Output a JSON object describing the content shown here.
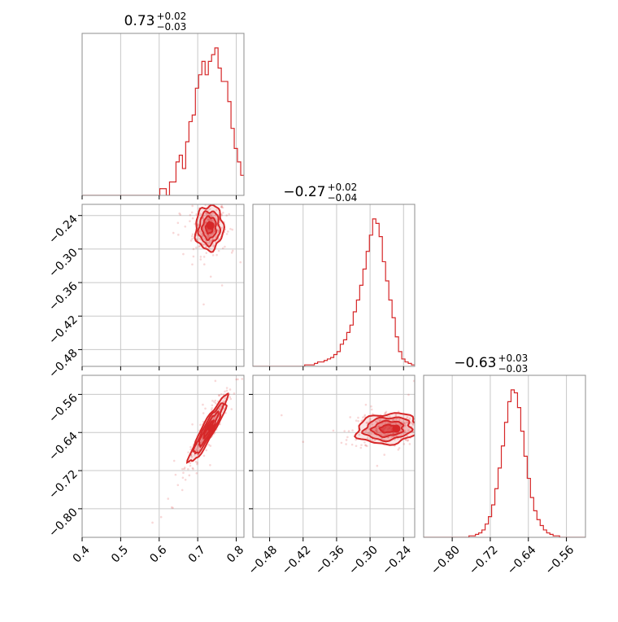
{
  "chart_data": {
    "type": "corner",
    "color": "#d62728",
    "params": [
      {
        "title_value": "0.73",
        "title_plus": "+0.02",
        "title_minus": "−0.03",
        "range": [
          0.4,
          0.82
        ],
        "ticks": [
          0.4,
          0.5,
          0.6,
          0.7,
          0.8
        ],
        "tick_labels": [
          "0.4",
          "0.5",
          "0.6",
          "0.7",
          "0.8"
        ],
        "hist": {
          "bin_start": 0.4,
          "bin_width": 0.0084,
          "counts": [
            0,
            0,
            0,
            0,
            0,
            0,
            0,
            0,
            0,
            0,
            0,
            0,
            0,
            0,
            0,
            0,
            0,
            0,
            0,
            0,
            0,
            0,
            0,
            0,
            1,
            1,
            0,
            2,
            2,
            5,
            6,
            4,
            8,
            11,
            12,
            16,
            18,
            20,
            18,
            20,
            21,
            22,
            19,
            17,
            17,
            14,
            10,
            7,
            5,
            3
          ]
        }
      },
      {
        "title_value": "−0.27",
        "title_plus": "+0.02",
        "title_minus": "−0.04",
        "range": [
          -0.51,
          -0.22
        ],
        "ticks": [
          -0.48,
          -0.42,
          -0.36,
          -0.3,
          -0.24
        ],
        "tick_labels": [
          "−0.48",
          "−0.42",
          "−0.36",
          "−0.30",
          "−0.24"
        ],
        "hist": {
          "bin_start": -0.51,
          "bin_width": 0.0058,
          "counts": [
            0,
            0,
            0,
            0,
            0,
            0,
            0,
            0,
            0,
            0,
            0,
            0,
            0,
            0,
            0,
            0,
            1,
            1,
            1,
            2,
            3,
            3,
            4,
            5,
            6,
            8,
            10,
            15,
            18,
            23,
            28,
            37,
            45,
            55,
            66,
            78,
            89,
            100,
            97,
            88,
            71,
            58,
            45,
            33,
            20,
            10,
            5,
            3,
            2,
            1
          ]
        }
      },
      {
        "title_value": "−0.63",
        "title_plus": "+0.03",
        "title_minus": "−0.03",
        "range": [
          -0.86,
          -0.52
        ],
        "ticks": [
          -0.8,
          -0.72,
          -0.64,
          -0.56
        ],
        "tick_labels": [
          "−0.80",
          "−0.72",
          "−0.64",
          "−0.56"
        ],
        "hist": {
          "bin_start": -0.86,
          "bin_width": 0.0068,
          "counts": [
            0,
            0,
            0,
            0,
            0,
            0,
            0,
            0,
            0,
            0,
            0,
            0,
            0,
            0,
            1,
            1,
            2,
            3,
            5,
            9,
            14,
            22,
            33,
            47,
            62,
            78,
            92,
            100,
            98,
            88,
            72,
            55,
            40,
            27,
            18,
            12,
            8,
            5,
            3,
            2,
            1,
            1,
            0,
            0,
            0,
            0,
            0,
            0,
            0,
            0
          ]
        }
      }
    ],
    "pairs": [
      {
        "x_param": 0,
        "y_param": 1,
        "mean": [
          0.73,
          -0.262
        ],
        "sd": [
          0.018,
          0.02
        ],
        "rho": 0.05,
        "peak": [
          0.733,
          -0.258
        ]
      },
      {
        "x_param": 0,
        "y_param": 2,
        "mean": [
          0.728,
          -0.633
        ],
        "sd": [
          0.025,
          0.035
        ],
        "rho": 0.93,
        "peak": [
          0.735,
          -0.63
        ]
      },
      {
        "x_param": 1,
        "y_param": 2,
        "mean": [
          -0.268,
          -0.632
        ],
        "sd": [
          0.028,
          0.016
        ],
        "rho": 0.15,
        "peak": [
          -0.253,
          -0.632
        ]
      }
    ],
    "contour_levels": [
      0.5,
      1.0,
      1.5,
      2.0
    ]
  }
}
